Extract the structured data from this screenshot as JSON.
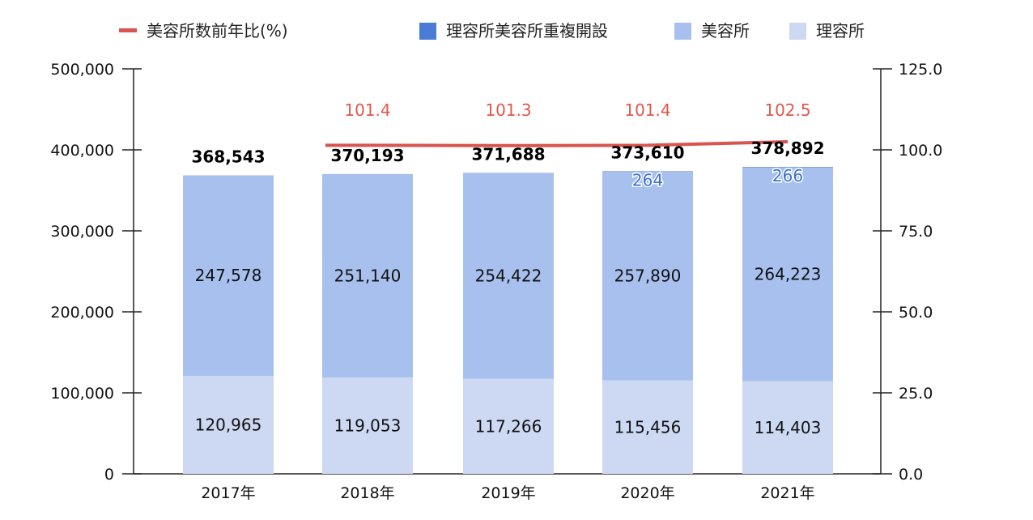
{
  "chart_data": {
    "type": "bar",
    "stacked": true,
    "categories": [
      "2017年",
      "2018年",
      "2019年",
      "2020年",
      "2021年"
    ],
    "series": [
      {
        "name": "理容所",
        "axis": "left",
        "color": "#cdd9f3",
        "values": [
          120965,
          119053,
          117266,
          115456,
          114403
        ]
      },
      {
        "name": "美容所",
        "axis": "left",
        "color": "#a8c0ee",
        "values": [
          247578,
          251140,
          254422,
          257890,
          264223
        ]
      },
      {
        "name": "理容所美容所重複開設",
        "axis": "left",
        "color": "#4a7bd6",
        "values": [
          null,
          null,
          null,
          264,
          266
        ]
      },
      {
        "name": "美容所数前年比(%)",
        "type": "line",
        "axis": "right",
        "color": "#d9534f",
        "values": [
          null,
          101.4,
          101.3,
          101.4,
          102.5
        ]
      }
    ],
    "totals": [
      368543,
      370193,
      371688,
      373610,
      378892
    ],
    "labels": {
      "segments": [
        [
          "120,965",
          "119,053",
          "117,266",
          "115,456",
          "114,403"
        ],
        [
          "247,578",
          "251,140",
          "254,422",
          "257,890",
          "264,223"
        ]
      ],
      "duplicates": [
        "",
        "",
        "",
        "264",
        "266"
      ],
      "totals": [
        "368,543",
        "370,193",
        "371,688",
        "373,610",
        "378,892"
      ],
      "ratio": [
        "",
        "101.4",
        "101.3",
        "101.4",
        "102.5"
      ]
    },
    "legend": {
      "position": "top",
      "items": [
        {
          "label": "美容所数前年比(%)",
          "color": "#d9534f",
          "shape": "line"
        },
        {
          "label": "理容所美容所重複開設",
          "color": "#4a7bd6",
          "shape": "box"
        },
        {
          "label": "美容所",
          "color": "#a8c0ee",
          "shape": "box"
        },
        {
          "label": "理容所",
          "color": "#cdd9f3",
          "shape": "box"
        }
      ]
    },
    "left_axis": {
      "ylim": [
        0,
        500000
      ],
      "ticks": [
        "0",
        "100,000",
        "200,000",
        "300,000",
        "400,000",
        "500,000"
      ]
    },
    "right_axis": {
      "ylim": [
        0,
        125
      ],
      "ticks": [
        "0.0",
        "25.0",
        "50.0",
        "75.0",
        "100.0",
        "125.0"
      ]
    },
    "grid": false
  }
}
